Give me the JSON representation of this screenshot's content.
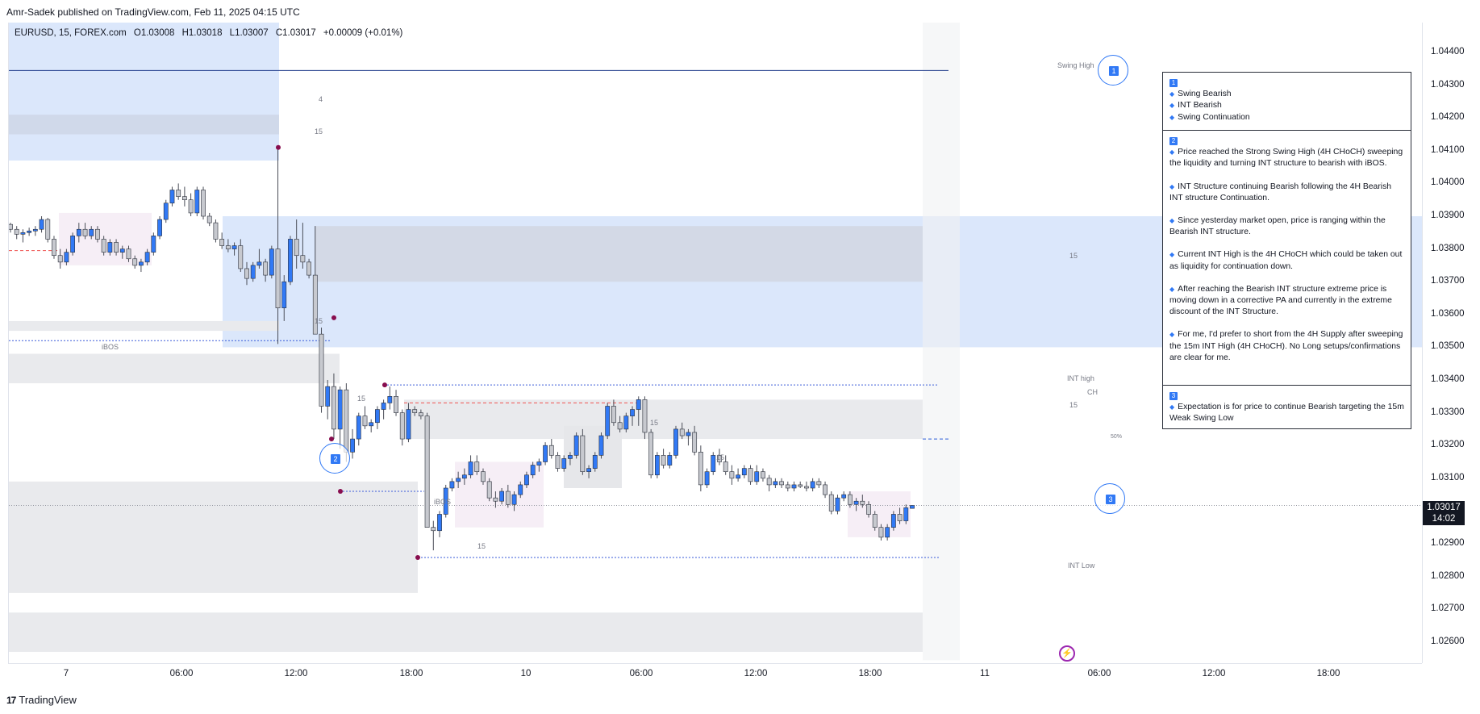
{
  "publisher_line": "Amr-Sadek published on TradingView.com, Feb 11, 2025 04:15 UTC",
  "legend": {
    "symbol": "EURUSD, 15, FOREX.com",
    "open": "O1.03008",
    "high": "H1.03018",
    "low": "L1.03007",
    "close": "C1.03017",
    "change": "+0.00009 (+0.01%)"
  },
  "price_axis": {
    "ticks": [
      "1.04400",
      "1.04300",
      "1.04200",
      "1.04100",
      "1.04000",
      "1.03900",
      "1.03800",
      "1.03700",
      "1.03600",
      "1.03500",
      "1.03400",
      "1.03300",
      "1.03200",
      "1.03100",
      "1.03000",
      "1.02900",
      "1.02800",
      "1.02700",
      "1.02600"
    ],
    "current_price": "1.03017",
    "countdown": "14:02"
  },
  "time_axis": {
    "ticks": [
      "7",
      "06:00",
      "12:00",
      "18:00",
      "10",
      "06:00",
      "12:00",
      "18:00",
      "11",
      "06:00",
      "12:00",
      "18:00"
    ]
  },
  "chart_labels": {
    "swing_high": "Swing High",
    "int_high": "INT high",
    "ch": "CH",
    "int_low": "INT Low",
    "ibos_1": "iBOS",
    "ibos_2": "iBOS",
    "fifty_pct": "50%",
    "zone_4": "4",
    "zone_15_a": "15",
    "zone_15_b": "15",
    "zone_15_c": "15",
    "zone_15_d": "15",
    "zone_15_e": "15",
    "zone_15_f": "15",
    "zone_15_g": "15",
    "zone_15_h": "15"
  },
  "markers": {
    "m1": "1",
    "m2": "2",
    "m3": "3"
  },
  "annotation": {
    "s1_badge": "1",
    "s1_lines": [
      "Swing Bearish",
      "INT Bearish",
      "Swing Continuation"
    ],
    "s2_badge": "2",
    "s2_p1": "Price reached the Strong Swing High (4H CHoCH) sweeping the liquidity and turning INT structure to bearish with iBOS.",
    "s2_p2": "INT Structure continuing Bearish following the 4H Bearish INT structure Continuation.",
    "s2_p3": "Since yesterday market open, price is ranging within the Bearish INT structure.",
    "s2_p4": "Current INT High is the 4H CHoCH which could be taken out as liquidity for continuation down.",
    "s2_p5": "After reaching the Bearish INT structure extreme price is moving down in a corrective PA and currently in the extreme discount of the INT Structure.",
    "s2_p6": "For me, I'd prefer to short from the 4H Supply after sweeping the 15m INT High (4H CHoCH). No Long setups/confirmations are clear for me.",
    "s3_badge": "3",
    "s3_p1": "Expectation is for price to continue Bearish targeting the 15m Weak Swing Low"
  },
  "footer_brand": "TradingView",
  "colors": {
    "up": "#3179f5",
    "down": "#b2b5be",
    "supply": "#dbe7fb",
    "grey_zone": "#e9eaed",
    "pink_zone": "#f6eef6",
    "marker": "#880e4f"
  },
  "chart_data": {
    "type": "candlestick",
    "symbol": "EURUSD",
    "timeframe": "15",
    "ylim": [
      1.0255,
      1.045
    ],
    "series": [
      {
        "name": "EURUSD",
        "points": [
          [
            1.03875,
            1.0388,
            1.0385,
            1.0386
          ],
          [
            1.0386,
            1.0387,
            1.0383,
            1.03845
          ],
          [
            1.03845,
            1.0386,
            1.0382,
            1.0385
          ],
          [
            1.0385,
            1.03865,
            1.0384,
            1.03855
          ],
          [
            1.03855,
            1.0387,
            1.0384,
            1.0386
          ],
          [
            1.0386,
            1.039,
            1.0385,
            1.0389
          ],
          [
            1.0389,
            1.03895,
            1.0382,
            1.0383
          ],
          [
            1.0383,
            1.0384,
            1.0377,
            1.0378
          ],
          [
            1.0378,
            1.038,
            1.0374,
            1.0376
          ],
          [
            1.0376,
            1.038,
            1.0375,
            1.0379
          ],
          [
            1.0379,
            1.0385,
            1.0378,
            1.0384
          ],
          [
            1.0384,
            1.0388,
            1.0382,
            1.0386
          ],
          [
            1.0386,
            1.0388,
            1.0383,
            1.0384
          ],
          [
            1.0384,
            1.0387,
            1.0383,
            1.0386
          ],
          [
            1.0386,
            1.0387,
            1.0382,
            1.0383
          ],
          [
            1.0383,
            1.0384,
            1.0378,
            1.0379
          ],
          [
            1.0379,
            1.0383,
            1.0378,
            1.0382
          ],
          [
            1.0382,
            1.0383,
            1.0378,
            1.0379
          ],
          [
            1.0379,
            1.0381,
            1.0377,
            1.038
          ],
          [
            1.038,
            1.0381,
            1.0376,
            1.0377
          ],
          [
            1.0377,
            1.0378,
            1.0374,
            1.0375
          ],
          [
            1.0375,
            1.0377,
            1.0373,
            1.0376
          ],
          [
            1.0376,
            1.038,
            1.0375,
            1.0379
          ],
          [
            1.0379,
            1.0385,
            1.0378,
            1.0384
          ],
          [
            1.0384,
            1.039,
            1.0383,
            1.0389
          ],
          [
            1.0389,
            1.0395,
            1.0388,
            1.0394
          ],
          [
            1.0394,
            1.0399,
            1.0393,
            1.0398
          ],
          [
            1.0398,
            1.04,
            1.0395,
            1.0396
          ],
          [
            1.0396,
            1.0399,
            1.0393,
            1.0395
          ],
          [
            1.0395,
            1.0397,
            1.039,
            1.0391
          ],
          [
            1.0391,
            1.0399,
            1.039,
            1.0398
          ],
          [
            1.0398,
            1.0399,
            1.0389,
            1.039
          ],
          [
            1.039,
            1.0391,
            1.0387,
            1.0388
          ],
          [
            1.0388,
            1.0389,
            1.0382,
            1.0383
          ],
          [
            1.0383,
            1.0385,
            1.038,
            1.0381
          ],
          [
            1.0381,
            1.0383,
            1.0379,
            1.038
          ],
          [
            1.038,
            1.0382,
            1.0378,
            1.0381
          ],
          [
            1.0381,
            1.0383,
            1.0373,
            1.0374
          ],
          [
            1.0374,
            1.0376,
            1.0369,
            1.0371
          ],
          [
            1.0371,
            1.0376,
            1.037,
            1.0375
          ],
          [
            1.0375,
            1.038,
            1.0374,
            1.0376
          ],
          [
            1.0376,
            1.0377,
            1.037,
            1.0372
          ],
          [
            1.0372,
            1.0381,
            1.0371,
            1.038
          ],
          [
            1.038,
            1.0411,
            1.0351,
            1.0362
          ],
          [
            1.0362,
            1.0372,
            1.0358,
            1.037
          ],
          [
            1.037,
            1.0384,
            1.0369,
            1.0383
          ],
          [
            1.0383,
            1.0389,
            1.0374,
            1.0378
          ],
          [
            1.0378,
            1.0388,
            1.0374,
            1.0376
          ],
          [
            1.0376,
            1.0377,
            1.0371,
            1.0372
          ],
          [
            1.0372,
            1.0387,
            1.0355,
            1.0354
          ],
          [
            1.0354,
            1.0356,
            1.033,
            1.0332
          ],
          [
            1.0332,
            1.034,
            1.0328,
            1.0338
          ],
          [
            1.0338,
            1.0342,
            1.0322,
            1.0325
          ],
          [
            1.0325,
            1.0338,
            1.0319,
            1.0337
          ],
          [
            1.0337,
            1.0339,
            1.0315,
            1.0318
          ],
          [
            1.0318,
            1.0325,
            1.0316,
            1.0322
          ],
          [
            1.0322,
            1.033,
            1.032,
            1.0329
          ],
          [
            1.0329,
            1.0332,
            1.0325,
            1.0326
          ],
          [
            1.0326,
            1.0328,
            1.0324,
            1.0327
          ],
          [
            1.0327,
            1.0332,
            1.0325,
            1.0331
          ],
          [
            1.0331,
            1.0334,
            1.0328,
            1.0333
          ],
          [
            1.0333,
            1.0338,
            1.0331,
            1.0335
          ],
          [
            1.0335,
            1.0337,
            1.0329,
            1.033
          ],
          [
            1.033,
            1.0331,
            1.032,
            1.0322
          ],
          [
            1.0322,
            1.0333,
            1.0321,
            1.0331
          ],
          [
            1.0331,
            1.0332,
            1.0329,
            1.033
          ],
          [
            1.033,
            1.0331,
            1.0328,
            1.0329
          ],
          [
            1.0329,
            1.033,
            1.0298,
            1.0295
          ],
          [
            1.0295,
            1.0297,
            1.0288,
            1.0294
          ],
          [
            1.0294,
            1.03,
            1.0292,
            1.0299
          ],
          [
            1.0299,
            1.0308,
            1.0298,
            1.0307
          ],
          [
            1.0307,
            1.031,
            1.0306,
            1.0309
          ],
          [
            1.0309,
            1.0312,
            1.0307,
            1.031
          ],
          [
            1.031,
            1.0313,
            1.0308,
            1.0311
          ],
          [
            1.0311,
            1.0317,
            1.031,
            1.0315
          ],
          [
            1.0315,
            1.0317,
            1.0311,
            1.0312
          ],
          [
            1.0312,
            1.0313,
            1.0308,
            1.0309
          ],
          [
            1.0309,
            1.031,
            1.0303,
            1.0304
          ],
          [
            1.0304,
            1.0306,
            1.0301,
            1.0303
          ],
          [
            1.0303,
            1.0307,
            1.0302,
            1.0306
          ],
          [
            1.0306,
            1.0308,
            1.0301,
            1.0302
          ],
          [
            1.0302,
            1.0306,
            1.03,
            1.0305
          ],
          [
            1.0305,
            1.0309,
            1.0304,
            1.0308
          ],
          [
            1.0308,
            1.0312,
            1.0307,
            1.0311
          ],
          [
            1.0311,
            1.0315,
            1.031,
            1.0314
          ],
          [
            1.0314,
            1.0316,
            1.0312,
            1.0315
          ],
          [
            1.0315,
            1.0321,
            1.0314,
            1.032
          ],
          [
            1.032,
            1.0322,
            1.0316,
            1.0317
          ],
          [
            1.0317,
            1.0318,
            1.0312,
            1.0313
          ],
          [
            1.0313,
            1.0317,
            1.0312,
            1.0316
          ],
          [
            1.0316,
            1.0318,
            1.0314,
            1.0317
          ],
          [
            1.0317,
            1.0324,
            1.0316,
            1.0323
          ],
          [
            1.0323,
            1.0325,
            1.0311,
            1.0312
          ],
          [
            1.0312,
            1.0314,
            1.031,
            1.0313
          ],
          [
            1.0313,
            1.0318,
            1.0312,
            1.0317
          ],
          [
            1.0317,
            1.0324,
            1.0316,
            1.0323
          ],
          [
            1.0323,
            1.0333,
            1.0322,
            1.0332
          ],
          [
            1.0332,
            1.0334,
            1.0326,
            1.0327
          ],
          [
            1.0327,
            1.0329,
            1.0324,
            1.0325
          ],
          [
            1.0325,
            1.033,
            1.0324,
            1.0329
          ],
          [
            1.0329,
            1.0332,
            1.0326,
            1.0331
          ],
          [
            1.0331,
            1.0335,
            1.0326,
            1.0334
          ],
          [
            1.0334,
            1.0335,
            1.0322,
            1.0324
          ],
          [
            1.0324,
            1.0325,
            1.031,
            1.0311
          ],
          [
            1.0311,
            1.0318,
            1.031,
            1.0317
          ],
          [
            1.0317,
            1.0319,
            1.0313,
            1.0314
          ],
          [
            1.0314,
            1.0318,
            1.0313,
            1.0317
          ],
          [
            1.0317,
            1.0326,
            1.0316,
            1.0325
          ],
          [
            1.0325,
            1.0327,
            1.0322,
            1.0323
          ],
          [
            1.0323,
            1.0325,
            1.032,
            1.0324
          ],
          [
            1.0324,
            1.0326,
            1.0317,
            1.0318
          ],
          [
            1.0318,
            1.032,
            1.0306,
            1.0308
          ],
          [
            1.0308,
            1.0313,
            1.0307,
            1.0312
          ],
          [
            1.0312,
            1.0318,
            1.0311,
            1.0317
          ],
          [
            1.0317,
            1.0319,
            1.0314,
            1.0315
          ],
          [
            1.0315,
            1.0317,
            1.0311,
            1.0312
          ],
          [
            1.0312,
            1.0314,
            1.0308,
            1.031
          ],
          [
            1.031,
            1.0313,
            1.0309,
            1.0311
          ],
          [
            1.0311,
            1.0314,
            1.031,
            1.0313
          ],
          [
            1.0313,
            1.0314,
            1.0308,
            1.0309
          ],
          [
            1.0309,
            1.0314,
            1.0308,
            1.0312
          ],
          [
            1.0312,
            1.0313,
            1.0309,
            1.031
          ],
          [
            1.031,
            1.0311,
            1.0306,
            1.0308
          ],
          [
            1.0308,
            1.031,
            1.0307,
            1.0309
          ],
          [
            1.0309,
            1.031,
            1.0307,
            1.0308
          ],
          [
            1.0308,
            1.0309,
            1.0306,
            1.0307
          ],
          [
            1.0307,
            1.0309,
            1.0306,
            1.0308
          ],
          [
            1.0308,
            1.0309,
            1.0307,
            1.03075
          ],
          [
            1.03075,
            1.0309,
            1.0306,
            1.0307
          ],
          [
            1.0307,
            1.031,
            1.0306,
            1.0309
          ],
          [
            1.0309,
            1.031,
            1.0307,
            1.0308
          ],
          [
            1.0308,
            1.0309,
            1.0304,
            1.0305
          ],
          [
            1.0305,
            1.0306,
            1.0299,
            1.03
          ],
          [
            1.03,
            1.0305,
            1.0299,
            1.0304
          ],
          [
            1.0304,
            1.0306,
            1.0303,
            1.0305
          ],
          [
            1.0305,
            1.0306,
            1.0301,
            1.0302
          ],
          [
            1.0302,
            1.0304,
            1.03,
            1.0303
          ],
          [
            1.0303,
            1.0305,
            1.0301,
            1.0302
          ],
          [
            1.0302,
            1.0303,
            1.0298,
            1.0299
          ],
          [
            1.0299,
            1.03,
            1.0294,
            1.0295
          ],
          [
            1.0295,
            1.0296,
            1.0291,
            1.0292
          ],
          [
            1.0292,
            1.0296,
            1.0291,
            1.0295
          ],
          [
            1.0295,
            1.03,
            1.0294,
            1.0299
          ],
          [
            1.0299,
            1.0301,
            1.0296,
            1.0297
          ],
          [
            1.0297,
            1.0302,
            1.0296,
            1.0301
          ],
          [
            1.03008,
            1.03018,
            1.03007,
            1.03017
          ]
        ]
      }
    ],
    "zones": [
      {
        "kind": "4H supply",
        "from": 1.035,
        "to": 1.039
      },
      {
        "kind": "15m supply",
        "from": 1.037,
        "to": 1.0387
      },
      {
        "kind": "swing high",
        "price": 1.04345
      }
    ],
    "levels": [
      {
        "name": "Swing High",
        "price": 1.04345
      },
      {
        "name": "INT high",
        "price": 1.03385
      },
      {
        "name": "INT Low",
        "price": 1.02858
      },
      {
        "name": "50%",
        "price": 1.0322
      }
    ]
  }
}
